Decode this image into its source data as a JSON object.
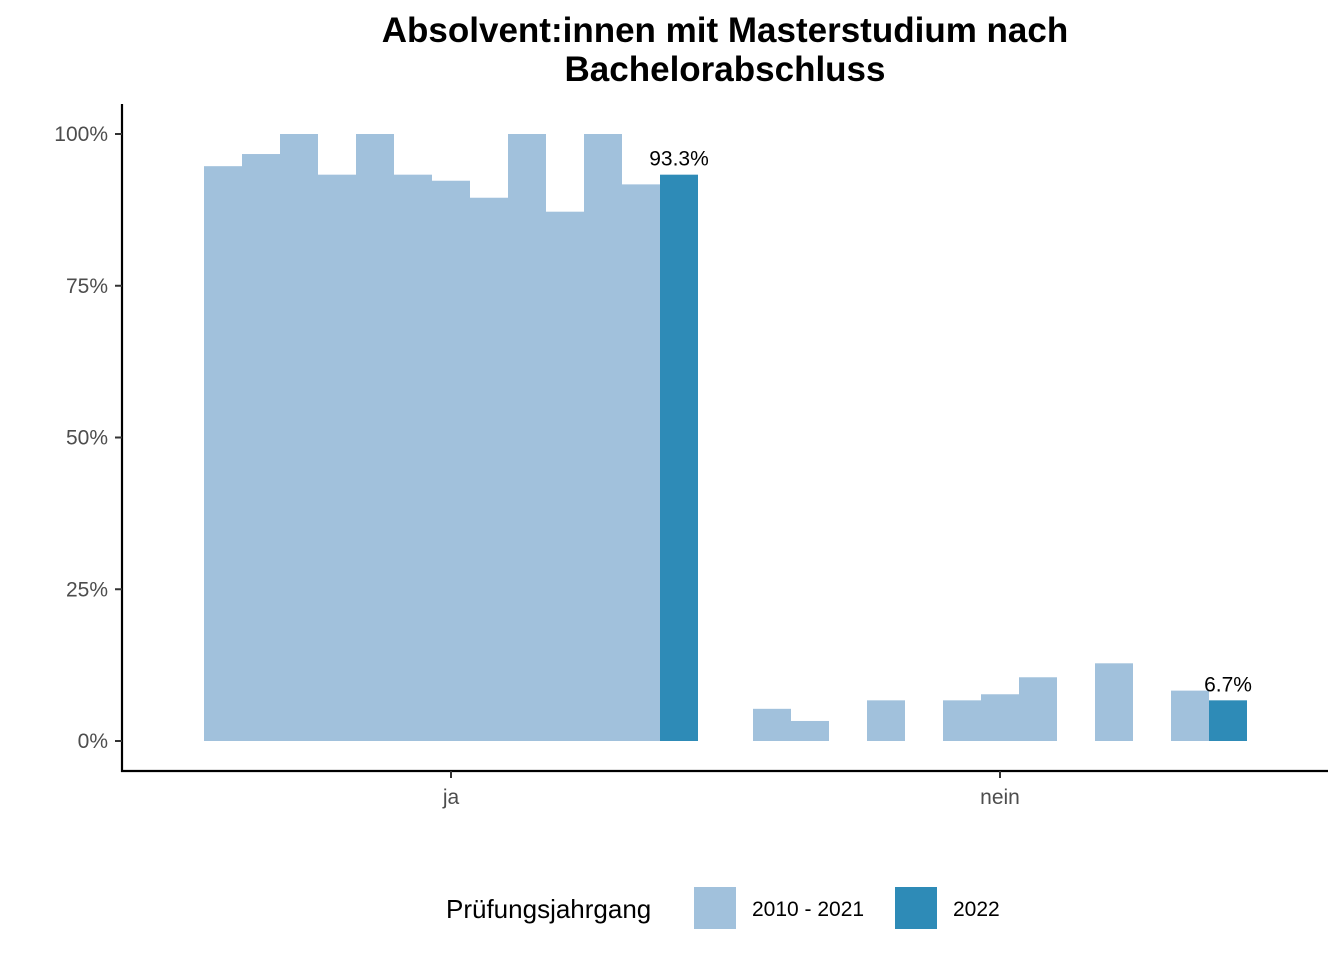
{
  "chart_data": {
    "type": "bar",
    "title_lines": [
      "Absolvent:innen mit Masterstudium nach",
      "Bachelorabschluss"
    ],
    "categories": [
      "ja",
      "nein"
    ],
    "ylim": [
      0,
      100
    ],
    "y_ticks": [
      {
        "value": 0,
        "label": "0%"
      },
      {
        "value": 25,
        "label": "25%"
      },
      {
        "value": 50,
        "label": "50%"
      },
      {
        "value": 75,
        "label": "75%"
      },
      {
        "value": 100,
        "label": "100%"
      }
    ],
    "years": [
      2010,
      2011,
      2012,
      2013,
      2014,
      2015,
      2016,
      2017,
      2018,
      2019,
      2020,
      2021,
      2022
    ],
    "series_by_category": [
      {
        "category": "ja",
        "values": [
          94.7,
          96.7,
          100,
          93.3,
          100,
          93.3,
          92.3,
          89.5,
          100,
          87.2,
          100,
          91.7,
          93.3
        ]
      },
      {
        "category": "nein",
        "values": [
          5.3,
          3.3,
          0,
          6.7,
          0,
          6.7,
          7.7,
          10.5,
          0,
          12.8,
          0,
          8.3,
          6.7
        ]
      }
    ],
    "highlight_labels": [
      {
        "category": "ja",
        "year": 2022,
        "label": "93.3%"
      },
      {
        "category": "nein",
        "year": 2022,
        "label": "6.7%"
      }
    ],
    "legend": {
      "title": "Prüfungsjahrgang",
      "placement": "bottom",
      "items": [
        {
          "label": "2010 - 2021",
          "color": "#a1c1dc"
        },
        {
          "label": "2022",
          "color": "#2e8bb7"
        }
      ]
    },
    "grid": false
  }
}
